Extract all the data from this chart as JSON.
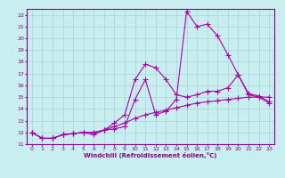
{
  "background_color": "#c8eef0",
  "grid_color": "#aad4d8",
  "line_color": "#aa00aa",
  "xlabel": "Windchill (Refroidissement éolien,°C)",
  "xlim": [
    -0.5,
    23.5
  ],
  "ylim": [
    11,
    22.5
  ],
  "yticks": [
    11,
    12,
    13,
    14,
    15,
    16,
    17,
    18,
    19,
    20,
    21,
    22
  ],
  "xticks": [
    0,
    1,
    2,
    3,
    4,
    5,
    6,
    7,
    8,
    9,
    10,
    11,
    12,
    13,
    14,
    15,
    16,
    17,
    18,
    19,
    20,
    21,
    22,
    23
  ],
  "line1_x": [
    0,
    1,
    2,
    3,
    4,
    5,
    6,
    7,
    8,
    9,
    10,
    11,
    12,
    13,
    14,
    15,
    16,
    17,
    18,
    19,
    20,
    21,
    22,
    23
  ],
  "line1_y": [
    12.0,
    11.5,
    11.5,
    11.8,
    11.9,
    12.0,
    11.8,
    12.2,
    12.8,
    13.5,
    16.5,
    17.8,
    17.5,
    16.5,
    15.2,
    15.0,
    15.2,
    15.5,
    15.5,
    15.8,
    16.9,
    15.3,
    15.1,
    14.6
  ],
  "line2_x": [
    0,
    1,
    2,
    3,
    4,
    5,
    6,
    7,
    8,
    9,
    10,
    11,
    12,
    13,
    14,
    15,
    16,
    17,
    18,
    19,
    20,
    21,
    22,
    23
  ],
  "line2_y": [
    12.0,
    11.5,
    11.5,
    11.8,
    11.9,
    12.0,
    12.0,
    12.2,
    12.3,
    12.5,
    14.8,
    16.5,
    13.5,
    13.8,
    14.8,
    22.3,
    21.0,
    21.2,
    20.2,
    18.6,
    16.9,
    15.2,
    15.0,
    14.5
  ],
  "line3_x": [
    0,
    1,
    2,
    3,
    4,
    5,
    6,
    7,
    8,
    9,
    10,
    11,
    12,
    13,
    14,
    15,
    16,
    17,
    18,
    19,
    20,
    21,
    22,
    23
  ],
  "line3_y": [
    12.0,
    11.5,
    11.5,
    11.8,
    11.9,
    12.0,
    12.0,
    12.2,
    12.5,
    12.8,
    13.2,
    13.5,
    13.7,
    13.9,
    14.1,
    14.3,
    14.5,
    14.6,
    14.7,
    14.8,
    14.9,
    15.0,
    15.0,
    15.0
  ]
}
